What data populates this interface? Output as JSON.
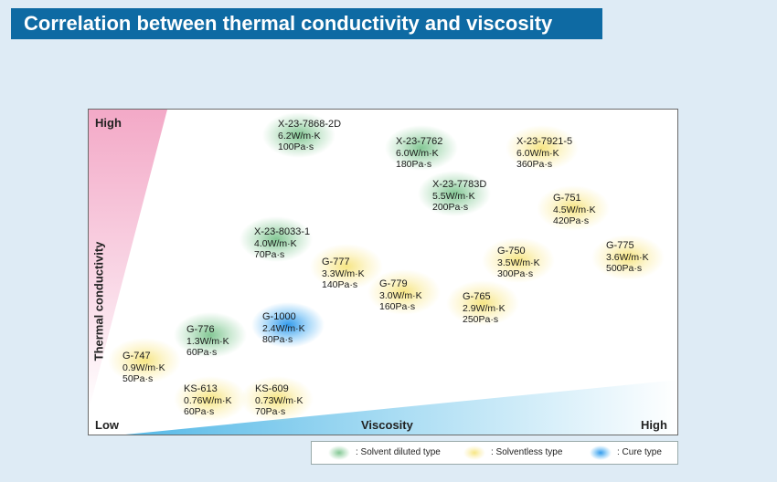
{
  "title": "Correlation between thermal conductivity and viscosity",
  "chart_data": {
    "type": "scatter",
    "title": "Correlation between thermal conductivity and viscosity",
    "xlabel": "Viscosity",
    "ylabel": "Thermal conductivity",
    "x_low_label": "Low",
    "x_high_label": "High",
    "y_high_label": "High",
    "colors": {
      "solvent": "#6ebe82",
      "solventless": "#f5e16e",
      "cure": "#2896eb"
    },
    "points": [
      {
        "name": "X-23-7868-2D",
        "tc": "6.2W/m·K",
        "visc": "100Pa·s",
        "tc_value": 6.2,
        "visc_value": 100,
        "type": "solvent"
      },
      {
        "name": "X-23-7762",
        "tc": "6.0W/m·K",
        "visc": "180Pa·s",
        "tc_value": 6.0,
        "visc_value": 180,
        "type": "solvent"
      },
      {
        "name": "X-23-7921-5",
        "tc": "6.0W/m·K",
        "visc": "360Pa·s",
        "tc_value": 6.0,
        "visc_value": 360,
        "type": "solventless"
      },
      {
        "name": "X-23-7783D",
        "tc": "5.5W/m·K",
        "visc": "200Pa·s",
        "tc_value": 5.5,
        "visc_value": 200,
        "type": "solvent"
      },
      {
        "name": "G-751",
        "tc": "4.5W/m·K",
        "visc": "420Pa·s",
        "tc_value": 4.5,
        "visc_value": 420,
        "type": "solventless"
      },
      {
        "name": "X-23-8033-1",
        "tc": "4.0W/m·K",
        "visc": "70Pa·s",
        "tc_value": 4.0,
        "visc_value": 70,
        "type": "solvent"
      },
      {
        "name": "G-775",
        "tc": "3.6W/m·K",
        "visc": "500Pa·s",
        "tc_value": 3.6,
        "visc_value": 500,
        "type": "solventless"
      },
      {
        "name": "G-750",
        "tc": "3.5W/m·K",
        "visc": "300Pa·s",
        "tc_value": 3.5,
        "visc_value": 300,
        "type": "solventless"
      },
      {
        "name": "G-777",
        "tc": "3.3W/m·K",
        "visc": "140Pa·s",
        "tc_value": 3.3,
        "visc_value": 140,
        "type": "solventless"
      },
      {
        "name": "G-779",
        "tc": "3.0W/m·K",
        "visc": "160Pa·s",
        "tc_value": 3.0,
        "visc_value": 160,
        "type": "solventless"
      },
      {
        "name": "G-765",
        "tc": "2.9W/m·K",
        "visc": "250Pa·s",
        "tc_value": 2.9,
        "visc_value": 250,
        "type": "solventless"
      },
      {
        "name": "G-1000",
        "tc": "2.4W/m·K",
        "visc": "80Pa·s",
        "tc_value": 2.4,
        "visc_value": 80,
        "type": "cure"
      },
      {
        "name": "G-776",
        "tc": "1.3W/m·K",
        "visc": "60Pa·s",
        "tc_value": 1.3,
        "visc_value": 60,
        "type": "solvent"
      },
      {
        "name": "G-747",
        "tc": "0.9W/m·K",
        "visc": "50Pa·s",
        "tc_value": 0.9,
        "visc_value": 50,
        "type": "solventless"
      },
      {
        "name": "KS-613",
        "tc": "0.76W/m·K",
        "visc": "60Pa·s",
        "tc_value": 0.76,
        "visc_value": 60,
        "type": "solventless"
      },
      {
        "name": "KS-609",
        "tc": "0.73W/m·K",
        "visc": "70Pa·s",
        "tc_value": 0.73,
        "visc_value": 70,
        "type": "solventless"
      }
    ],
    "legend": [
      {
        "type": "solvent",
        "label": ": Solvent diluted type"
      },
      {
        "type": "solventless",
        "label": ": Solventless type"
      },
      {
        "type": "cure",
        "label": ": Cure type"
      }
    ]
  }
}
